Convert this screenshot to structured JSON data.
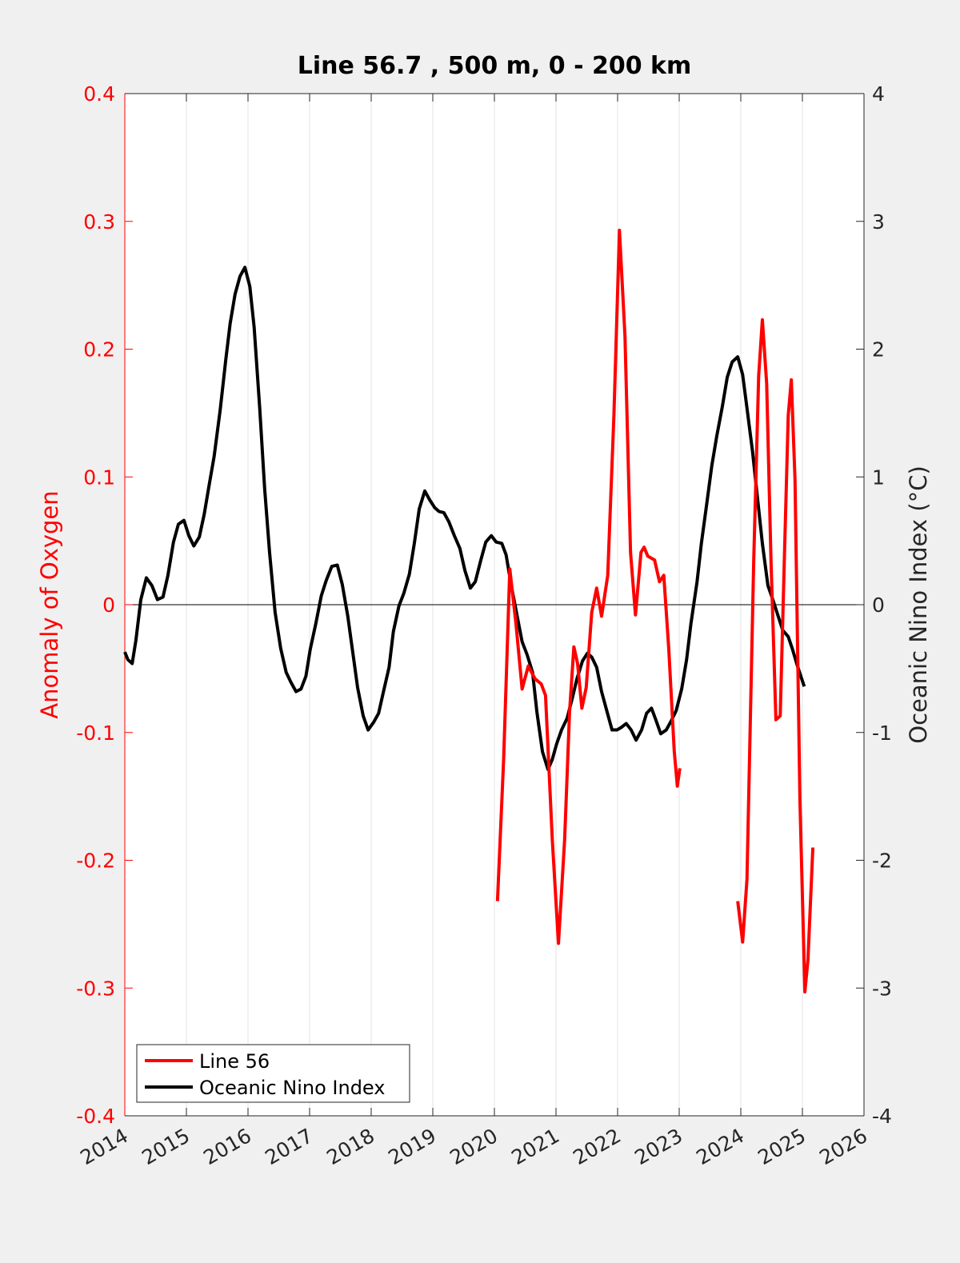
{
  "chart_data": {
    "type": "line",
    "title": "Line 56.7 , 500 m, 0 - 200 km",
    "y_label": "Anomaly of Oxygen",
    "y2_label": "Oceanic Nino Index (°C)",
    "xlim": [
      2014,
      2026
    ],
    "xticks": [
      2014,
      2015,
      2016,
      2017,
      2018,
      2019,
      2020,
      2021,
      2022,
      2023,
      2024,
      2025,
      2026
    ],
    "ylim": [
      -0.4,
      0.4
    ],
    "yticks": [
      -0.4,
      -0.3,
      -0.2,
      -0.1,
      0,
      0.1,
      0.2,
      0.3,
      0.4
    ],
    "y2lim": [
      -4,
      4
    ],
    "y2ticks": [
      -4,
      -3,
      -2,
      -1,
      0,
      1,
      2,
      3,
      4
    ],
    "xgrid": true,
    "legend": "lower left",
    "series": [
      {
        "name": "Line 56",
        "color": "#ff0000",
        "axis": "y",
        "x": [
          2020.05,
          2020.15,
          2020.25,
          2020.35,
          2020.45,
          2020.55,
          2020.66,
          2020.76,
          2020.83,
          2020.94,
          2021.04,
          2021.14,
          2021.22,
          2021.29,
          2021.35,
          2021.42,
          2021.49,
          2021.58,
          2021.66,
          2021.74,
          2021.84,
          2021.94,
          2022.03,
          2022.12,
          2022.21,
          2022.29,
          2022.38,
          2022.43,
          2022.49,
          2022.6,
          2022.68,
          2022.75,
          2022.83,
          2022.92,
          2022.97,
          2023.01,
          null,
          2023.95,
          2024.03,
          2024.1,
          2024.21,
          2024.29,
          2024.35,
          2024.42,
          2024.49,
          2024.57,
          2024.64,
          2024.71,
          2024.77,
          2024.82,
          2024.88,
          2024.96,
          2025.04,
          2025.09,
          2025.17
        ],
        "values": [
          -0.232,
          -0.121,
          0.028,
          -0.015,
          -0.066,
          -0.048,
          -0.058,
          -0.062,
          -0.071,
          -0.184,
          -0.265,
          -0.184,
          -0.084,
          -0.033,
          -0.046,
          -0.081,
          -0.065,
          -0.006,
          0.013,
          -0.009,
          0.023,
          0.148,
          0.293,
          0.21,
          0.041,
          -0.008,
          0.041,
          0.045,
          0.038,
          0.035,
          0.018,
          0.023,
          -0.034,
          -0.115,
          -0.142,
          -0.128,
          null,
          -0.232,
          -0.264,
          -0.215,
          0.035,
          0.179,
          0.223,
          0.173,
          0.035,
          -0.09,
          -0.087,
          0.041,
          0.148,
          0.176,
          0.098,
          -0.153,
          -0.303,
          -0.278,
          -0.19
        ]
      },
      {
        "name": "Oceanic Nino Index",
        "color": "#000000",
        "axis": "y2",
        "x": [
          2014.0,
          2014.05,
          2014.12,
          2014.18,
          2014.26,
          2014.35,
          2014.44,
          2014.53,
          2014.62,
          2014.7,
          2014.79,
          2014.87,
          2014.96,
          2015.04,
          2015.12,
          2015.21,
          2015.29,
          2015.36,
          2015.45,
          2015.55,
          2015.64,
          2015.71,
          2015.79,
          2015.87,
          2015.95,
          2016.03,
          2016.1,
          2016.19,
          2016.27,
          2016.35,
          2016.44,
          2016.53,
          2016.62,
          2016.7,
          2016.78,
          2016.86,
          2016.94,
          2017.01,
          2017.1,
          2017.19,
          2017.27,
          2017.36,
          2017.45,
          2017.53,
          2017.62,
          2017.7,
          2017.78,
          2017.87,
          2017.95,
          2018.04,
          2018.12,
          2018.19,
          2018.29,
          2018.36,
          2018.45,
          2018.53,
          2018.62,
          2018.7,
          2018.78,
          2018.87,
          2018.95,
          2019.03,
          2019.1,
          2019.18,
          2019.26,
          2019.35,
          2019.44,
          2019.52,
          2019.61,
          2019.69,
          2019.78,
          2019.86,
          2019.95,
          2020.03,
          2020.12,
          2020.19,
          2020.27,
          2020.35,
          2020.45,
          2020.53,
          2020.62,
          2020.69,
          2020.78,
          2020.87,
          2020.94,
          2021.01,
          2021.09,
          2021.18,
          2021.26,
          2021.34,
          2021.43,
          2021.51,
          2021.58,
          2021.66,
          2021.74,
          2021.83,
          2021.91,
          2021.99,
          2022.06,
          2022.14,
          2022.22,
          2022.3,
          2022.39,
          2022.47,
          2022.55,
          2022.62,
          2022.7,
          2022.79,
          2022.87,
          2022.95,
          2023.04,
          2023.12,
          2023.19,
          2023.29,
          2023.36,
          2023.45,
          2023.53,
          2023.61,
          2023.7,
          2023.78,
          2023.86,
          2023.95,
          2024.03,
          2024.1,
          2024.19,
          2024.27,
          2024.35,
          2024.44,
          2024.52,
          2024.6,
          2024.68,
          2024.77,
          2024.84,
          2024.92,
          2025.03
        ],
        "values": [
          -0.37,
          -0.43,
          -0.46,
          -0.28,
          0.04,
          0.21,
          0.15,
          0.04,
          0.06,
          0.23,
          0.49,
          0.63,
          0.66,
          0.54,
          0.46,
          0.53,
          0.71,
          0.91,
          1.16,
          1.53,
          1.92,
          2.2,
          2.43,
          2.57,
          2.64,
          2.49,
          2.17,
          1.54,
          0.91,
          0.41,
          -0.06,
          -0.34,
          -0.53,
          -0.61,
          -0.68,
          -0.66,
          -0.56,
          -0.35,
          -0.15,
          0.07,
          0.19,
          0.3,
          0.31,
          0.16,
          -0.09,
          -0.37,
          -0.65,
          -0.87,
          -0.98,
          -0.92,
          -0.85,
          -0.7,
          -0.49,
          -0.21,
          -0.01,
          0.09,
          0.24,
          0.48,
          0.75,
          0.89,
          0.82,
          0.76,
          0.73,
          0.72,
          0.65,
          0.54,
          0.44,
          0.27,
          0.13,
          0.18,
          0.35,
          0.49,
          0.54,
          0.49,
          0.48,
          0.39,
          0.16,
          -0.04,
          -0.29,
          -0.39,
          -0.53,
          -0.84,
          -1.15,
          -1.29,
          -1.21,
          -1.09,
          -0.98,
          -0.89,
          -0.74,
          -0.58,
          -0.44,
          -0.38,
          -0.41,
          -0.49,
          -0.68,
          -0.84,
          -0.98,
          -0.98,
          -0.96,
          -0.93,
          -0.98,
          -1.06,
          -0.98,
          -0.85,
          -0.81,
          -0.9,
          -1.01,
          -0.98,
          -0.91,
          -0.83,
          -0.66,
          -0.43,
          -0.15,
          0.18,
          0.48,
          0.8,
          1.09,
          1.32,
          1.55,
          1.78,
          1.9,
          1.94,
          1.8,
          1.54,
          1.2,
          0.84,
          0.48,
          0.15,
          0.04,
          -0.08,
          -0.2,
          -0.25,
          -0.35,
          -0.48,
          -0.64
        ]
      }
    ]
  }
}
